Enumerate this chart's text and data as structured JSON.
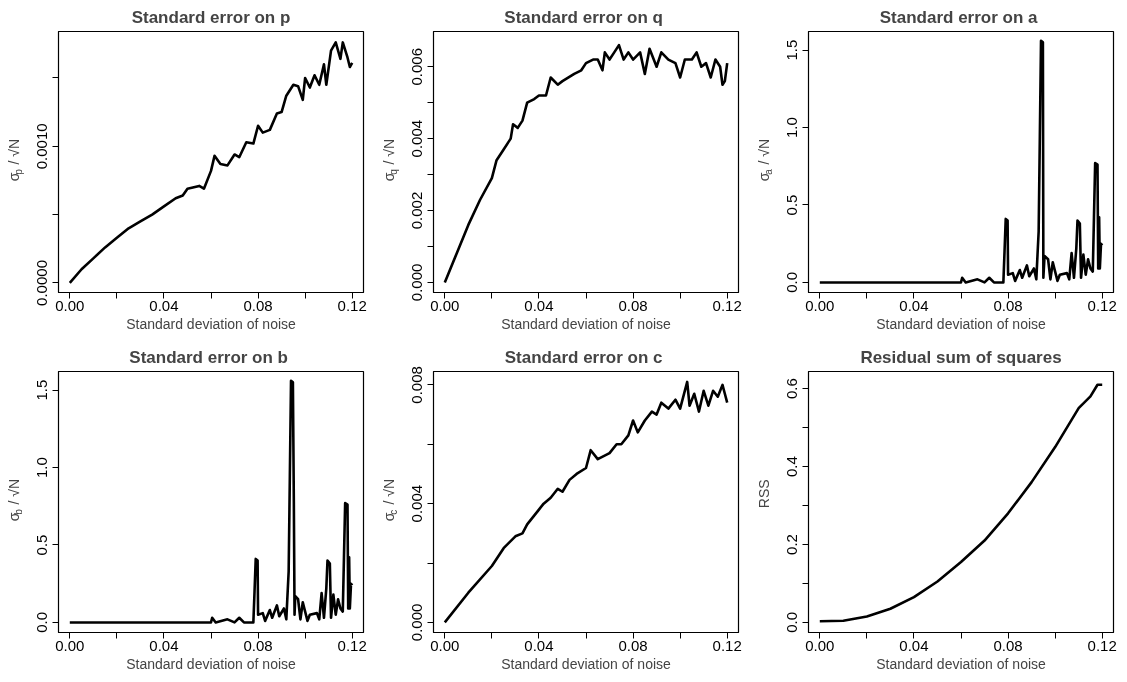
{
  "chart_data": [
    {
      "type": "line",
      "title": "Standard error on p",
      "xlabel": "Standard deviation of noise",
      "ylabel": "σ$_{p}$ / √N",
      "color": "#000000",
      "x": [
        0,
        0.005,
        0.01,
        0.015,
        0.02,
        0.025,
        0.03,
        0.035,
        0.04,
        0.045,
        0.048,
        0.05,
        0.055,
        0.057,
        0.06,
        0.0615,
        0.064,
        0.067,
        0.07,
        0.072,
        0.075,
        0.078,
        0.08,
        0.082,
        0.085,
        0.088,
        0.09,
        0.092,
        0.095,
        0.097,
        0.099,
        0.1,
        0.102,
        0.104,
        0.106,
        0.108,
        0.109,
        0.111,
        0.113,
        0.115,
        0.116,
        0.118,
        0.119,
        0.12
      ],
      "values": [
        0,
        0.0001,
        0.00018,
        0.00026,
        0.00033,
        0.0004,
        0.00045,
        0.0005,
        0.00056,
        0.00062,
        0.00064,
        0.00069,
        0.00071,
        0.00069,
        0.00082,
        0.00093,
        0.00087,
        0.00086,
        0.00094,
        0.00092,
        0.00103,
        0.00102,
        0.00115,
        0.0011,
        0.00112,
        0.00124,
        0.00125,
        0.00137,
        0.00145,
        0.00144,
        0.00134,
        0.0015,
        0.00143,
        0.00152,
        0.00145,
        0.0016,
        0.00145,
        0.0017,
        0.00176,
        0.00164,
        0.00176,
        0.00165,
        0.00158,
        0.00161
      ],
      "xlim": [
        -0.0048,
        0.1248
      ],
      "ylim": [
        -7e-05,
        0.00184
      ],
      "xticks": [
        {
          "value": 0,
          "label": "0.00"
        },
        {
          "value": 0.02,
          "label": null
        },
        {
          "value": 0.04,
          "label": "0.04"
        },
        {
          "value": 0.06,
          "label": null
        },
        {
          "value": 0.08,
          "label": "0.08"
        },
        {
          "value": 0.1,
          "label": null
        },
        {
          "value": 0.12,
          "label": "0.12"
        }
      ],
      "yticks": [
        {
          "value": 0,
          "label": "0.0000"
        },
        {
          "value": 0.0005,
          "label": null
        },
        {
          "value": 0.001,
          "label": "0.0010"
        },
        {
          "value": 0.0015,
          "label": null
        }
      ]
    },
    {
      "type": "line",
      "title": "Standard error on  q",
      "xlabel": "Standard deviation of noise",
      "ylabel": "σ$_{q}$ / √N",
      "color": "#000000",
      "x": [
        0,
        0.005,
        0.01,
        0.015,
        0.02,
        0.022,
        0.025,
        0.028,
        0.029,
        0.031,
        0.033,
        0.035,
        0.038,
        0.04,
        0.043,
        0.045,
        0.048,
        0.05,
        0.055,
        0.058,
        0.06,
        0.063,
        0.065,
        0.067,
        0.068,
        0.07,
        0.072,
        0.074,
        0.076,
        0.078,
        0.08,
        0.083,
        0.085,
        0.087,
        0.09,
        0.092,
        0.095,
        0.098,
        0.1,
        0.102,
        0.105,
        0.107,
        0.109,
        0.111,
        0.113,
        0.115,
        0.117,
        0.118,
        0.119,
        0.12
      ],
      "values": [
        0,
        0.0008,
        0.0016,
        0.0023,
        0.0029,
        0.0034,
        0.0037,
        0.004,
        0.0044,
        0.0043,
        0.0045,
        0.005,
        0.0051,
        0.0052,
        0.0052,
        0.0057,
        0.0055,
        0.0056,
        0.0058,
        0.0059,
        0.0061,
        0.0062,
        0.0062,
        0.0059,
        0.0064,
        0.0062,
        0.0064,
        0.0066,
        0.0062,
        0.0064,
        0.0062,
        0.0064,
        0.0058,
        0.0065,
        0.006,
        0.0064,
        0.0062,
        0.0061,
        0.0057,
        0.0062,
        0.0062,
        0.0064,
        0.006,
        0.0061,
        0.0057,
        0.0062,
        0.006,
        0.0055,
        0.0056,
        0.0061
      ],
      "xlim": [
        -0.0048,
        0.1248
      ],
      "ylim": [
        -0.00028,
        0.00698
      ],
      "xticks": [
        {
          "value": 0,
          "label": "0.00"
        },
        {
          "value": 0.02,
          "label": null
        },
        {
          "value": 0.04,
          "label": "0.04"
        },
        {
          "value": 0.06,
          "label": null
        },
        {
          "value": 0.08,
          "label": "0.08"
        },
        {
          "value": 0.1,
          "label": null
        },
        {
          "value": 0.12,
          "label": "0.12"
        }
      ],
      "yticks": [
        {
          "value": 0,
          "label": "0.000"
        },
        {
          "value": 0.001,
          "label": null
        },
        {
          "value": 0.002,
          "label": "0.002"
        },
        {
          "value": 0.003,
          "label": null
        },
        {
          "value": 0.004,
          "label": "0.004"
        },
        {
          "value": 0.005,
          "label": null
        },
        {
          "value": 0.006,
          "label": "0.006"
        }
      ]
    },
    {
      "type": "line",
      "title": "Standard error on  a",
      "xlabel": "Standard deviation of noise",
      "ylabel": "σ$_{a}$ / √N",
      "color": "#000000",
      "x": [
        0,
        0.06,
        0.0605,
        0.062,
        0.067,
        0.07,
        0.072,
        0.074,
        0.078,
        0.0785,
        0.079,
        0.0798,
        0.08,
        0.082,
        0.083,
        0.085,
        0.086,
        0.088,
        0.089,
        0.091,
        0.092,
        0.093,
        0.0935,
        0.094,
        0.0948,
        0.095,
        0.0955,
        0.097,
        0.098,
        0.099,
        0.1,
        0.101,
        0.102,
        0.105,
        0.106,
        0.107,
        0.108,
        0.109,
        0.1095,
        0.1105,
        0.111,
        0.112,
        0.113,
        0.114,
        0.115,
        0.116,
        0.1165,
        0.117,
        0.118,
        0.1183,
        0.1187,
        0.119,
        0.1195,
        0.12
      ],
      "values": [
        0,
        0,
        0.03,
        0,
        0.02,
        0,
        0.03,
        0,
        0,
        0.2,
        0.41,
        0.4,
        0.05,
        0.06,
        0.01,
        0.08,
        0.03,
        0.11,
        0.04,
        0.09,
        0.02,
        0.33,
        0.94,
        1.56,
        1.55,
        0.03,
        0.17,
        0.15,
        0.02,
        0.13,
        0.07,
        0.01,
        0.05,
        0.06,
        0.02,
        0.19,
        0.03,
        0.22,
        0.4,
        0.38,
        0.03,
        0.18,
        0.05,
        0.15,
        0.09,
        0.07,
        0.42,
        0.77,
        0.76,
        0.09,
        0.42,
        0.09,
        0.25,
        0.24
      ],
      "xlim": [
        -0.0048,
        0.1248
      ],
      "ylim": [
        -0.065,
        1.62
      ],
      "xticks": [
        {
          "value": 0,
          "label": "0.00"
        },
        {
          "value": 0.02,
          "label": null
        },
        {
          "value": 0.04,
          "label": "0.04"
        },
        {
          "value": 0.06,
          "label": null
        },
        {
          "value": 0.08,
          "label": "0.08"
        },
        {
          "value": 0.1,
          "label": null
        },
        {
          "value": 0.12,
          "label": "0.12"
        }
      ],
      "yticks": [
        {
          "value": 0,
          "label": "0.0"
        },
        {
          "value": 0.5,
          "label": "0.5"
        },
        {
          "value": 1,
          "label": "1.0"
        },
        {
          "value": 1.5,
          "label": "1.5"
        }
      ]
    },
    {
      "type": "line",
      "title": "Standard error on  b",
      "xlabel": "Standard deviation of noise",
      "ylabel": "σ$_{b}$ / √N",
      "color": "#000000",
      "x": [
        0,
        0.06,
        0.0605,
        0.062,
        0.067,
        0.07,
        0.072,
        0.074,
        0.078,
        0.0785,
        0.079,
        0.0798,
        0.08,
        0.082,
        0.083,
        0.085,
        0.086,
        0.088,
        0.089,
        0.091,
        0.092,
        0.093,
        0.0935,
        0.094,
        0.0948,
        0.0952,
        0.0955,
        0.0958,
        0.097,
        0.098,
        0.099,
        0.1,
        0.101,
        0.102,
        0.105,
        0.106,
        0.107,
        0.108,
        0.109,
        0.1095,
        0.1105,
        0.111,
        0.112,
        0.113,
        0.114,
        0.115,
        0.116,
        0.1165,
        0.117,
        0.118,
        0.1183,
        0.1187,
        0.119,
        0.1195,
        0.12
      ],
      "values": [
        0,
        0,
        0.03,
        0,
        0.02,
        0,
        0.03,
        0,
        0,
        0.2,
        0.41,
        0.4,
        0.05,
        0.06,
        0.01,
        0.08,
        0.03,
        0.11,
        0.04,
        0.09,
        0.02,
        0.33,
        0.94,
        1.56,
        1.55,
        0.78,
        0.05,
        0.17,
        0.15,
        0.02,
        0.13,
        0.07,
        0.01,
        0.05,
        0.06,
        0.02,
        0.19,
        0.03,
        0.22,
        0.4,
        0.38,
        0.03,
        0.18,
        0.05,
        0.15,
        0.09,
        0.07,
        0.42,
        0.77,
        0.76,
        0.09,
        0.42,
        0.09,
        0.25,
        0.24
      ],
      "xlim": [
        -0.0048,
        0.1248
      ],
      "ylim": [
        -0.065,
        1.62
      ],
      "xticks": [
        {
          "value": 0,
          "label": "0.00"
        },
        {
          "value": 0.02,
          "label": null
        },
        {
          "value": 0.04,
          "label": "0.04"
        },
        {
          "value": 0.06,
          "label": null
        },
        {
          "value": 0.08,
          "label": "0.08"
        },
        {
          "value": 0.1,
          "label": null
        },
        {
          "value": 0.12,
          "label": "0.12"
        }
      ],
      "yticks": [
        {
          "value": 0,
          "label": "0.0"
        },
        {
          "value": 0.5,
          "label": "0.5"
        },
        {
          "value": 1,
          "label": "1.0"
        },
        {
          "value": 1.5,
          "label": "1.5"
        }
      ]
    },
    {
      "type": "line",
      "title": "Standard error on  c",
      "xlabel": "Standard deviation of noise",
      "ylabel": "σ$_{c}$ / √N",
      "color": "#000000",
      "x": [
        0,
        0.01,
        0.02,
        0.025,
        0.03,
        0.033,
        0.035,
        0.04,
        0.042,
        0.045,
        0.048,
        0.05,
        0.053,
        0.056,
        0.06,
        0.062,
        0.065,
        0.07,
        0.073,
        0.075,
        0.078,
        0.08,
        0.082,
        0.085,
        0.088,
        0.09,
        0.092,
        0.095,
        0.098,
        0.1,
        0.103,
        0.104,
        0.106,
        0.108,
        0.11,
        0.112,
        0.114,
        0.116,
        0.118,
        0.119,
        0.12
      ],
      "values": [
        0,
        0.001,
        0.0019,
        0.0025,
        0.0029,
        0.003,
        0.0033,
        0.0038,
        0.004,
        0.0042,
        0.0045,
        0.0044,
        0.0048,
        0.005,
        0.0052,
        0.0058,
        0.0055,
        0.0057,
        0.006,
        0.006,
        0.0063,
        0.0068,
        0.0064,
        0.0068,
        0.0071,
        0.007,
        0.0074,
        0.0072,
        0.0075,
        0.0072,
        0.0081,
        0.0073,
        0.0077,
        0.0071,
        0.0078,
        0.0073,
        0.0078,
        0.0076,
        0.008,
        0.0077,
        0.0074
      ],
      "xlim": [
        -0.0048,
        0.1248
      ],
      "ylim": [
        -0.00034,
        0.00845
      ],
      "xticks": [
        {
          "value": 0,
          "label": "0.00"
        },
        {
          "value": 0.02,
          "label": null
        },
        {
          "value": 0.04,
          "label": "0.04"
        },
        {
          "value": 0.06,
          "label": null
        },
        {
          "value": 0.08,
          "label": "0.08"
        },
        {
          "value": 0.1,
          "label": null
        },
        {
          "value": 0.12,
          "label": "0.12"
        }
      ],
      "yticks": [
        {
          "value": 0,
          "label": "0.000"
        },
        {
          "value": 0.002,
          "label": null
        },
        {
          "value": 0.004,
          "label": "0.004"
        },
        {
          "value": 0.006,
          "label": null
        },
        {
          "value": 0.008,
          "label": "0.008"
        }
      ]
    },
    {
      "type": "line",
      "title": "Residual sum of squares",
      "xlabel": "Standard deviation of noise",
      "ylabel": "RSS",
      "color": "#000000",
      "x": [
        0,
        0.01,
        0.02,
        0.03,
        0.04,
        0.05,
        0.06,
        0.07,
        0.08,
        0.09,
        0.1,
        0.105,
        0.11,
        0.115,
        0.118,
        0.12
      ],
      "values": [
        0.003,
        0.004,
        0.015,
        0.035,
        0.065,
        0.105,
        0.155,
        0.21,
        0.28,
        0.36,
        0.45,
        0.5,
        0.55,
        0.58,
        0.61,
        0.61
      ],
      "xlim": [
        -0.0048,
        0.1248
      ],
      "ylim": [
        -0.026,
        0.644
      ],
      "xticks": [
        {
          "value": 0,
          "label": "0.00"
        },
        {
          "value": 0.02,
          "label": null
        },
        {
          "value": 0.04,
          "label": "0.04"
        },
        {
          "value": 0.06,
          "label": null
        },
        {
          "value": 0.08,
          "label": "0.08"
        },
        {
          "value": 0.1,
          "label": null
        },
        {
          "value": 0.12,
          "label": "0.12"
        }
      ],
      "yticks": [
        {
          "value": 0,
          "label": "0.0"
        },
        {
          "value": 0.1,
          "label": null
        },
        {
          "value": 0.2,
          "label": "0.2"
        },
        {
          "value": 0.3,
          "label": null
        },
        {
          "value": 0.4,
          "label": "0.4"
        },
        {
          "value": 0.5,
          "label": null
        },
        {
          "value": 0.6,
          "label": "0.6"
        }
      ]
    }
  ]
}
